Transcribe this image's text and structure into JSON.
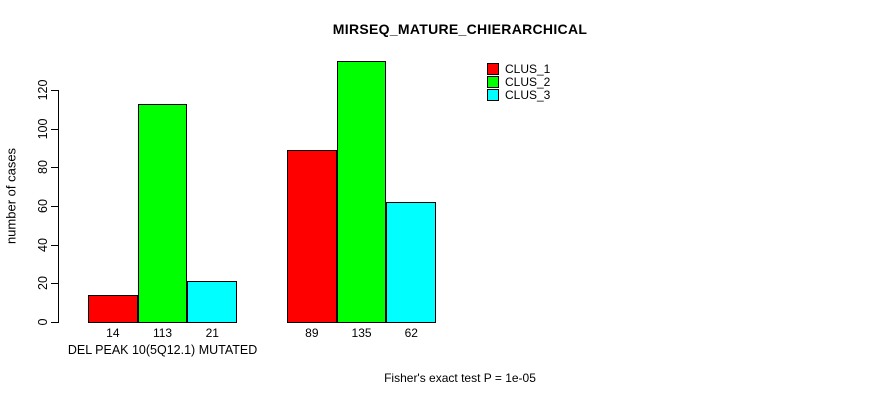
{
  "title": "MIRSEQ_MATURE_CHIERARCHICAL",
  "footer": "Fisher's exact test P = 1e-05",
  "chart_data": {
    "type": "bar",
    "title": "MIRSEQ_MATURE_CHIERARCHICAL",
    "xlabel": "DEL PEAK 10(5Q12.1) MUTATED",
    "ylabel": "number of cases",
    "categories": [
      "DEL PEAK 10(5Q12.1) MUTATED",
      ""
    ],
    "series": [
      {
        "name": "CLUS_1",
        "color": "#ff0000",
        "values": [
          14,
          89
        ]
      },
      {
        "name": "CLUS_2",
        "color": "#00ff00",
        "values": [
          113,
          135
        ]
      },
      {
        "name": "CLUS_3",
        "color": "#00ffff",
        "values": [
          21,
          62
        ]
      }
    ],
    "bar_value_labels": [
      [
        14,
        113,
        21
      ],
      [
        89,
        135,
        62
      ]
    ],
    "yticks": [
      0,
      20,
      40,
      60,
      80,
      100,
      120
    ],
    "ylim": [
      0,
      140
    ],
    "grid": false,
    "legend_position": "top-right",
    "legend": [
      {
        "name": "CLUS_1",
        "color": "#ff0000"
      },
      {
        "name": "CLUS_2",
        "color": "#00ff00"
      },
      {
        "name": "CLUS_3",
        "color": "#00ffff"
      }
    ],
    "annotation": "Fisher's exact test P = 1e-05",
    "axis_color": "#000000",
    "background_color": "#ffffff"
  }
}
